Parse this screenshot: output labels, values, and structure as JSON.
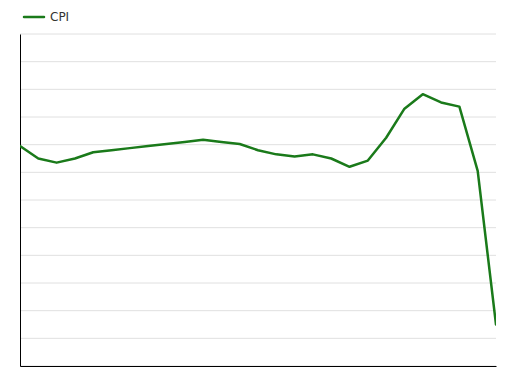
{
  "chart_data": {
    "type": "line",
    "x": [
      0,
      1,
      2,
      3,
      4,
      5,
      6,
      7,
      8,
      9,
      10,
      11,
      12,
      13,
      14,
      15,
      16,
      17,
      18,
      19,
      20,
      21,
      22,
      23,
      24,
      25,
      26
    ],
    "series": [
      {
        "name": "CPI",
        "color": "#1a7a1a",
        "values": [
          2.8,
          2.5,
          2.4,
          2.5,
          2.65,
          2.7,
          2.75,
          2.8,
          2.85,
          2.9,
          2.95,
          2.9,
          2.85,
          2.7,
          2.6,
          2.55,
          2.6,
          2.5,
          2.3,
          2.45,
          3.0,
          3.7,
          4.05,
          3.85,
          3.75,
          2.2,
          -1.5
        ]
      }
    ],
    "xlim": [
      0,
      26
    ],
    "ylim": [
      -2.5,
      5.5
    ],
    "yticks": [
      -2.5,
      -1.8333333333333335,
      -1.166666666666667,
      -0.5,
      0.16666666666666652,
      0.833333333333333,
      1.5,
      2.166666666666666,
      2.833333333333333,
      3.5,
      4.166666666666666,
      4.833333333333332,
      5.5
    ],
    "grid": true,
    "legend": "upper left",
    "tick_labels": false
  }
}
